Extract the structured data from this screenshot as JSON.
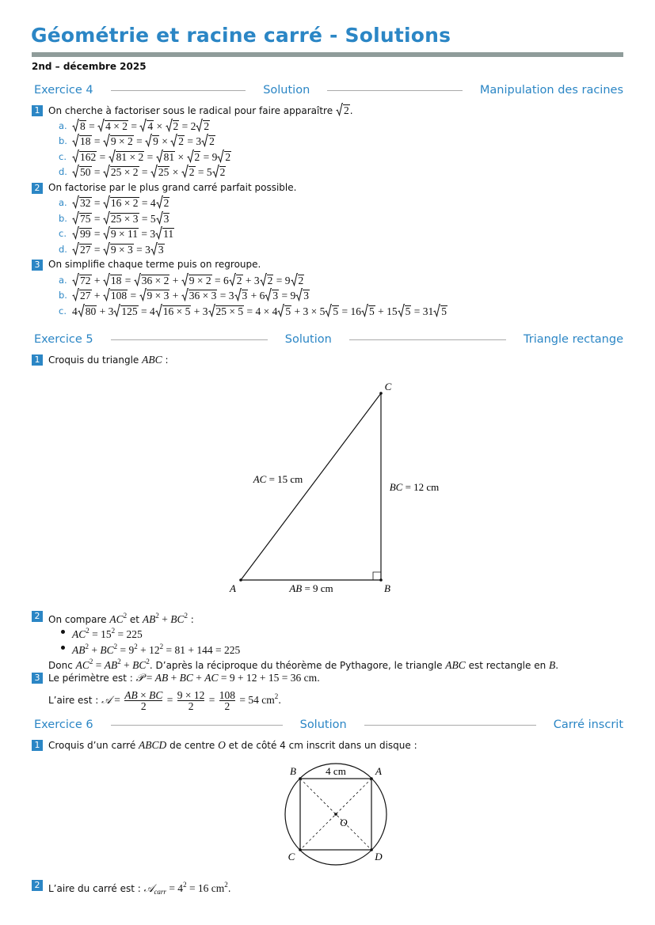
{
  "header": {
    "title": "Géométrie et racine carré - Solutions",
    "subtitle": "2nd – décembre 2025"
  },
  "exercises": [
    {
      "label": "Exercice 4",
      "solution": "Solution",
      "topic": "Manipulation des racines",
      "items": [
        {
          "number": "1",
          "intro": [
            "On cherche à factoriser sous le radical pour faire apparaître ",
            {
              "r": "2"
            },
            "."
          ],
          "sub": [
            {
              "letter": "a.",
              "math": [
                {
                  "r": "8"
                },
                " = ",
                {
                  "r": "4 × 2"
                },
                " = ",
                {
                  "r": "4"
                },
                " × ",
                {
                  "r": "2"
                },
                " = 2",
                {
                  "r": "2"
                }
              ]
            },
            {
              "letter": "b.",
              "math": [
                {
                  "r": "18"
                },
                " = ",
                {
                  "r": "9 × 2"
                },
                " = ",
                {
                  "r": "9"
                },
                " × ",
                {
                  "r": "2"
                },
                " = 3",
                {
                  "r": "2"
                }
              ]
            },
            {
              "letter": "c.",
              "math": [
                {
                  "r": "162"
                },
                " = ",
                {
                  "r": "81 × 2"
                },
                " = ",
                {
                  "r": "81"
                },
                " × ",
                {
                  "r": "2"
                },
                " = 9",
                {
                  "r": "2"
                }
              ]
            },
            {
              "letter": "d.",
              "math": [
                {
                  "r": "50"
                },
                " = ",
                {
                  "r": "25 × 2"
                },
                " = ",
                {
                  "r": "25"
                },
                " × ",
                {
                  "r": "2"
                },
                " = 5",
                {
                  "r": "2"
                }
              ]
            }
          ]
        },
        {
          "number": "2",
          "intro": [
            "On factorise par le plus grand carré parfait possible."
          ],
          "sub": [
            {
              "letter": "a.",
              "math": [
                {
                  "r": "32"
                },
                " = ",
                {
                  "r": "16 × 2"
                },
                " = 4",
                {
                  "r": "2"
                }
              ]
            },
            {
              "letter": "b.",
              "math": [
                {
                  "r": "75"
                },
                " = ",
                {
                  "r": "25 × 3"
                },
                " = 5",
                {
                  "r": "3"
                }
              ]
            },
            {
              "letter": "c.",
              "math": [
                {
                  "r": "99"
                },
                " = ",
                {
                  "r": "9 × 11"
                },
                " = 3",
                {
                  "r": "11"
                }
              ]
            },
            {
              "letter": "d.",
              "math": [
                {
                  "r": "27"
                },
                " = ",
                {
                  "r": "9 × 3"
                },
                " = 3",
                {
                  "r": "3"
                }
              ]
            }
          ]
        },
        {
          "number": "3",
          "intro": [
            "On simplifie chaque terme puis on regroupe."
          ],
          "sub": [
            {
              "letter": "a.",
              "math": [
                {
                  "r": "72"
                },
                " + ",
                {
                  "r": "18"
                },
                " = ",
                {
                  "r": "36 × 2"
                },
                " + ",
                {
                  "r": "9 × 2"
                },
                " = 6",
                {
                  "r": "2"
                },
                " + 3",
                {
                  "r": "2"
                },
                " = 9",
                {
                  "r": "2"
                }
              ]
            },
            {
              "letter": "b.",
              "math": [
                {
                  "r": "27"
                },
                " + ",
                {
                  "r": "108"
                },
                " = ",
                {
                  "r": "9 × 3"
                },
                " + ",
                {
                  "r": "36 × 3"
                },
                " = 3",
                {
                  "r": "3"
                },
                " + 6",
                {
                  "r": "3"
                },
                " = 9",
                {
                  "r": "3"
                }
              ]
            },
            {
              "letter": "c.",
              "math": [
                "4",
                {
                  "r": "80"
                },
                " + 3",
                {
                  "r": "125"
                },
                " = 4",
                {
                  "r": "16 × 5"
                },
                " + 3",
                {
                  "r": "25 × 5"
                },
                " = 4 × 4",
                {
                  "r": "5"
                },
                " + 3 × 5",
                {
                  "r": "5"
                },
                " = 16",
                {
                  "r": "5"
                },
                " + 15",
                {
                  "r": "5"
                },
                " = 31",
                {
                  "r": "5"
                }
              ]
            }
          ]
        }
      ]
    },
    {
      "label": "Exercice 5",
      "solution": "Solution",
      "topic": "Triangle rectange",
      "items": [
        {
          "number": "1",
          "intro": [
            "Croquis du triangle ",
            {
              "i": "ABC"
            },
            " :"
          ],
          "figure": {
            "labels": [
              [
                {
                  "i": "A"
                }
              ],
              [
                {
                  "i": "B"
                }
              ],
              [
                {
                  "i": "C"
                }
              ],
              [
                {
                  "i": "AC"
                },
                " = 15 cm"
              ],
              [
                {
                  "i": "BC"
                },
                " = 12 cm"
              ],
              [
                {
                  "i": "AB"
                },
                " = 9 cm"
              ]
            ]
          }
        },
        {
          "number": "2",
          "intro": [
            "On compare ",
            {
              "i": "AC"
            },
            {
              "sup": "2"
            },
            " et ",
            {
              "i": "AB"
            },
            {
              "sup": "2"
            },
            {
              "m": " + "
            },
            {
              "i": "BC"
            },
            {
              "sup": "2"
            },
            " :"
          ],
          "bullets": [
            [
              {
                "i": "AC"
              },
              {
                "sup": "2"
              },
              " = 15",
              {
                "sup": "2"
              },
              " = 225"
            ],
            [
              {
                "i": "AB"
              },
              {
                "sup": "2"
              },
              " + ",
              {
                "i": "BC"
              },
              {
                "sup": "2"
              },
              " = 9",
              {
                "sup": "2"
              },
              " + 12",
              {
                "sup": "2"
              },
              " = 81 + 144 = 225"
            ]
          ],
          "after": [
            [
              "Donc ",
              {
                "i": "AC"
              },
              {
                "sup": "2"
              },
              {
                "m": " = "
              },
              {
                "i": "AB"
              },
              {
                "sup": "2"
              },
              {
                "m": " + "
              },
              {
                "i": "BC"
              },
              {
                "sup": "2"
              },
              ". D’après la réciproque du théorème de Pythagore, le triangle ",
              {
                "i": "ABC"
              },
              " est rectangle en ",
              {
                "i": "B"
              },
              "."
            ]
          ]
        },
        {
          "number": "3",
          "intro": [
            "Le périmètre est : ",
            {
              "i": "𝒫"
            },
            {
              "m": " = "
            },
            {
              "i": "AB"
            },
            {
              "m": " + "
            },
            {
              "i": "BC"
            },
            {
              "m": " + "
            },
            {
              "i": "AC"
            },
            {
              "m": " = 9 + 12 + 15 = 36 cm"
            },
            "."
          ],
          "after": [
            [
              "L’aire est : ",
              {
                "i": "𝒜"
              },
              {
                "m": " = "
              },
              {
                "frac": [
                  [
                    {
                      "i": "AB"
                    },
                    {
                      "m": " × "
                    },
                    {
                      "i": "BC"
                    }
                  ],
                  [
                    {
                      "m": "2"
                    }
                  ]
                ]
              },
              {
                "m": " = "
              },
              {
                "frac": [
                  [
                    {
                      "m": "9 × 12"
                    }
                  ],
                  [
                    {
                      "m": "2"
                    }
                  ]
                ]
              },
              {
                "m": " = "
              },
              {
                "frac": [
                  [
                    {
                      "m": "108"
                    }
                  ],
                  [
                    {
                      "m": "2"
                    }
                  ]
                ]
              },
              {
                "m": " = 54 cm"
              },
              {
                "sup": "2"
              },
              "."
            ]
          ]
        }
      ]
    },
    {
      "label": "Exercice 6",
      "solution": "Solution",
      "topic": "Carré inscrit",
      "items": [
        {
          "number": "1",
          "intro": [
            "Croquis d’un carré ",
            {
              "i": "ABCD"
            },
            " de centre ",
            {
              "i": "O"
            },
            " et de côté 4 cm inscrit dans un disque :"
          ],
          "figure": {
            "labels": [
              [
                {
                  "i": "A"
                }
              ],
              [
                {
                  "i": "B"
                }
              ],
              [
                {
                  "i": "C"
                }
              ],
              [
                {
                  "i": "D"
                }
              ],
              [
                {
                  "i": "O"
                }
              ],
              [
                "4 cm"
              ]
            ]
          }
        },
        {
          "number": "2",
          "intro": [
            "L’aire du carré est : ",
            {
              "i": "𝒜"
            },
            {
              "sub": "carr"
            },
            {
              "m": " = 4"
            },
            {
              "sup": "2"
            },
            {
              "m": " = 16 cm"
            },
            {
              "sup": "2"
            },
            "."
          ]
        }
      ]
    }
  ]
}
